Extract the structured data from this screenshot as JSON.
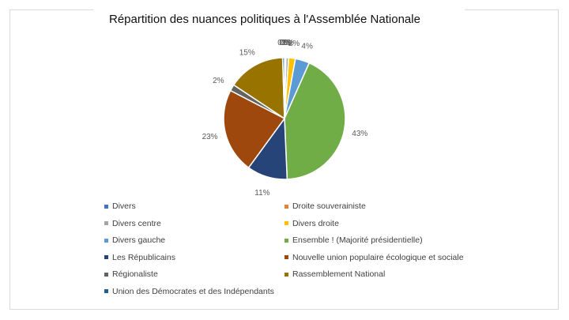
{
  "chart_data": {
    "type": "pie",
    "title": "Répartition des nuances politiques à l'Assemblée Nationale",
    "slices": [
      {
        "name": "Divers",
        "value": 0.2,
        "label": "0%",
        "color": "#4472c4"
      },
      {
        "name": "Droite souverainiste",
        "value": 0.2,
        "label": "0%",
        "color": "#ed7d31"
      },
      {
        "name": "Divers centre",
        "value": 0.7,
        "label": "1%",
        "color": "#a5a5a5"
      },
      {
        "name": "Divers droite",
        "value": 1.8,
        "label": "2%",
        "color": "#ffc000"
      },
      {
        "name": "Divers gauche",
        "value": 3.8,
        "label": "4%",
        "color": "#5b9bd5"
      },
      {
        "name": "Ensemble ! (Majorité présidentielle)",
        "value": 42.9,
        "label": "43%",
        "color": "#70ad47"
      },
      {
        "name": "Les Républicains",
        "value": 10.8,
        "label": "11%",
        "color": "#264478"
      },
      {
        "name": "Nouvelle union populaire écologique et sociale",
        "value": 22.7,
        "label": "23%",
        "color": "#9e480e"
      },
      {
        "name": "Régionaliste",
        "value": 1.7,
        "label": "2%",
        "color": "#636363"
      },
      {
        "name": "Rassemblement National",
        "value": 15.3,
        "label": "15%",
        "color": "#997300"
      },
      {
        "name": "Union des Démocrates et des Indépendants",
        "value": 0.5,
        "label": "0%",
        "color": "#255e91"
      }
    ],
    "legend_position": "bottom"
  }
}
